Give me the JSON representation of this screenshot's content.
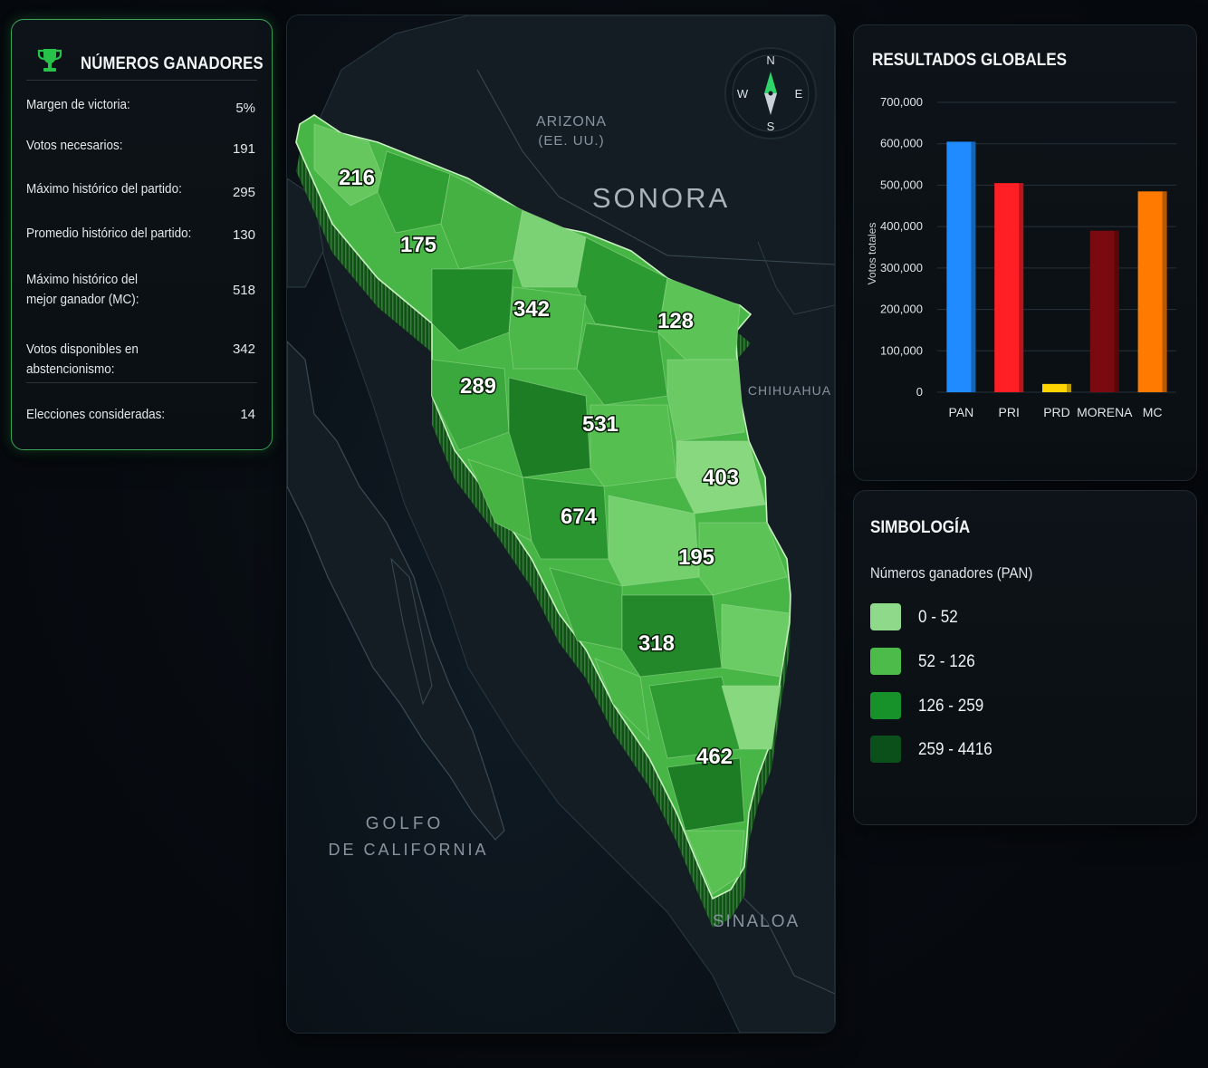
{
  "stats": {
    "title": "NÚMEROS GANADORES",
    "rows": [
      {
        "label": "Margen de victoria:",
        "value": "5%"
      },
      {
        "label": "Votos necesarios:",
        "value": "191"
      },
      {
        "label": "Máximo histórico del partido:",
        "value": "295"
      },
      {
        "label": "Promedio histórico del partido:",
        "value": "130"
      },
      {
        "label": "Máximo histórico del mejor ganador (MC):",
        "value": "518"
      },
      {
        "label": "Votos disponibles en abstencionismo:",
        "value": "342"
      },
      {
        "label": "Elecciones consideradas:",
        "value": "14"
      }
    ]
  },
  "map": {
    "title": "SONORA",
    "neighbors": {
      "arizona_1": "ARIZONA",
      "arizona_2": "(EE. UU.)",
      "chihuahua": "CHIHUAHUA",
      "sinaloa": "SINALOA",
      "gulf_1": "GOLFO",
      "gulf_2": "DE CALIFORNIA"
    },
    "compass": {
      "n": "N",
      "s": "S",
      "e": "E",
      "w": "W"
    },
    "region_labels": [
      "216",
      "175",
      "342",
      "128",
      "289",
      "531",
      "403",
      "674",
      "195",
      "318",
      "462"
    ]
  },
  "chart": {
    "title": "RESULTADOS GLOBALES",
    "chart_data": {
      "type": "bar",
      "title": "RESULTADOS GLOBALES",
      "ylabel": "Votos totales",
      "xlabel": "",
      "categories": [
        "PAN",
        "PRI",
        "PRD",
        "MORENA",
        "MC"
      ],
      "values": [
        605000,
        505000,
        20000,
        390000,
        485000
      ],
      "colors": [
        "#1f8bff",
        "#ff1f24",
        "#ffd400",
        "#7a0a10",
        "#ff7a00"
      ],
      "ylim": [
        0,
        700000
      ],
      "yticks": [
        "0",
        "100,000",
        "200,000",
        "300,000",
        "400,000",
        "500,000",
        "600,000",
        "700,000"
      ],
      "grid": true
    }
  },
  "legend": {
    "title": "SIMBOLOGÍA",
    "subtitle": "Números ganadores (PAN)",
    "items": [
      {
        "label": "0 - 52",
        "color": "#8fd98a"
      },
      {
        "label": "52 - 126",
        "color": "#4cbb4a"
      },
      {
        "label": "126 - 259",
        "color": "#17922a"
      },
      {
        "label": "259 - 4416",
        "color": "#0b4f1a"
      }
    ]
  }
}
